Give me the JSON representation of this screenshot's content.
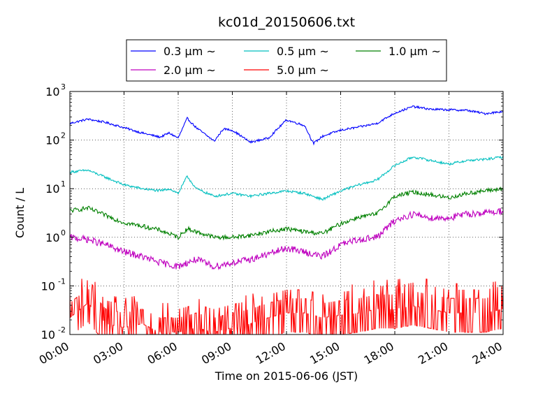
{
  "chart_data": {
    "type": "line",
    "title": "kc01d_20150606.txt",
    "xlabel": "Time on 2015-06-06 (JST)",
    "ylabel": "Count / L",
    "y_scale": "log",
    "ylim": [
      0.01,
      1000
    ],
    "xlim": [
      "00:00",
      "24:00"
    ],
    "x_ticks": [
      "00:00",
      "03:00",
      "06:00",
      "09:00",
      "12:00",
      "15:00",
      "18:00",
      "21:00",
      "24:00"
    ],
    "y_ticks": [
      {
        "base": "10",
        "exp": "-2"
      },
      {
        "base": "10",
        "exp": "-1"
      },
      {
        "base": "10",
        "exp": "0"
      },
      {
        "base": "10",
        "exp": "1"
      },
      {
        "base": "10",
        "exp": "2"
      },
      {
        "base": "10",
        "exp": "3"
      }
    ],
    "grid": true,
    "legend_position": "top-center",
    "legend_ncol": 3,
    "series": [
      {
        "name": "0.3 μm ~",
        "color": "#0000ff",
        "x": [
          "00:00",
          "01:00",
          "02:00",
          "03:00",
          "04:00",
          "05:00",
          "05:30",
          "06:00",
          "06:30",
          "07:00",
          "08:00",
          "08:30",
          "09:00",
          "10:00",
          "11:00",
          "12:00",
          "13:00",
          "13:30",
          "14:00",
          "15:00",
          "16:00",
          "17:00",
          "18:00",
          "19:00",
          "20:00",
          "21:00",
          "22:00",
          "23:00",
          "24:00"
        ],
        "values": [
          220,
          270,
          230,
          180,
          140,
          115,
          140,
          110,
          280,
          180,
          95,
          170,
          160,
          90,
          110,
          260,
          200,
          85,
          120,
          160,
          185,
          220,
          360,
          490,
          430,
          420,
          410,
          350,
          390
        ]
      },
      {
        "name": "0.5 μm ~",
        "color": "#00bfbf",
        "x": [
          "00:00",
          "01:00",
          "02:00",
          "03:00",
          "04:00",
          "05:00",
          "05:30",
          "06:00",
          "06:30",
          "07:00",
          "08:00",
          "09:00",
          "10:00",
          "11:00",
          "12:00",
          "13:00",
          "14:00",
          "15:00",
          "16:00",
          "17:00",
          "18:00",
          "19:00",
          "20:00",
          "21:00",
          "22:00",
          "23:00",
          "24:00"
        ],
        "values": [
          22,
          24,
          17,
          12,
          10,
          9,
          10,
          8,
          18,
          10,
          7,
          8,
          7,
          8,
          9,
          8,
          6,
          9,
          12,
          15,
          30,
          45,
          38,
          32,
          38,
          40,
          45
        ]
      },
      {
        "name": "1.0 μm ~",
        "color": "#008000",
        "x": [
          "00:00",
          "01:00",
          "02:00",
          "03:00",
          "04:00",
          "05:00",
          "06:00",
          "06:30",
          "07:00",
          "08:00",
          "09:00",
          "10:00",
          "11:00",
          "12:00",
          "13:00",
          "14:00",
          "15:00",
          "16:00",
          "17:00",
          "18:00",
          "19:00",
          "20:00",
          "21:00",
          "22:00",
          "23:00",
          "24:00"
        ],
        "values": [
          3.5,
          4,
          2.8,
          2,
          1.7,
          1.4,
          1,
          1.5,
          1.3,
          1,
          1,
          1.1,
          1.3,
          1.5,
          1.3,
          1.2,
          1.9,
          2.6,
          3,
          7,
          8.5,
          7.5,
          6.5,
          8,
          9,
          10
        ]
      },
      {
        "name": "2.0 μm ~",
        "color": "#bf00bf",
        "x": [
          "00:00",
          "01:00",
          "02:00",
          "03:00",
          "04:00",
          "05:00",
          "06:00",
          "06:30",
          "07:00",
          "08:00",
          "09:00",
          "10:00",
          "11:00",
          "12:00",
          "13:00",
          "14:00",
          "15:00",
          "16:00",
          "17:00",
          "18:00",
          "19:00",
          "20:00",
          "21:00",
          "22:00",
          "23:00",
          "24:00"
        ],
        "values": [
          1,
          0.9,
          0.7,
          0.5,
          0.4,
          0.3,
          0.25,
          0.3,
          0.35,
          0.25,
          0.3,
          0.35,
          0.45,
          0.6,
          0.5,
          0.4,
          0.7,
          0.9,
          1,
          2.2,
          3,
          2.5,
          2.5,
          3,
          3.2,
          3.5
        ]
      },
      {
        "name": "5.0 μm ~",
        "color": "#ff0000",
        "x": [
          "00:00",
          "01:00",
          "02:00",
          "03:00",
          "04:00",
          "05:00",
          "06:00",
          "07:00",
          "08:00",
          "09:00",
          "10:00",
          "11:00",
          "12:00",
          "13:00",
          "14:00",
          "15:00",
          "16:00",
          "17:00",
          "18:00",
          "19:00",
          "20:00",
          "21:00",
          "22:00",
          "23:00",
          "24:00"
        ],
        "values": [
          0.04,
          0.08,
          0.03,
          0.025,
          0.03,
          0.02,
          0.02,
          0.025,
          0.02,
          0.025,
          0.03,
          0.04,
          0.05,
          0.05,
          0.04,
          0.045,
          0.05,
          0.06,
          0.06,
          0.07,
          0.06,
          0.05,
          0.05,
          0.05,
          0.06
        ]
      }
    ]
  }
}
